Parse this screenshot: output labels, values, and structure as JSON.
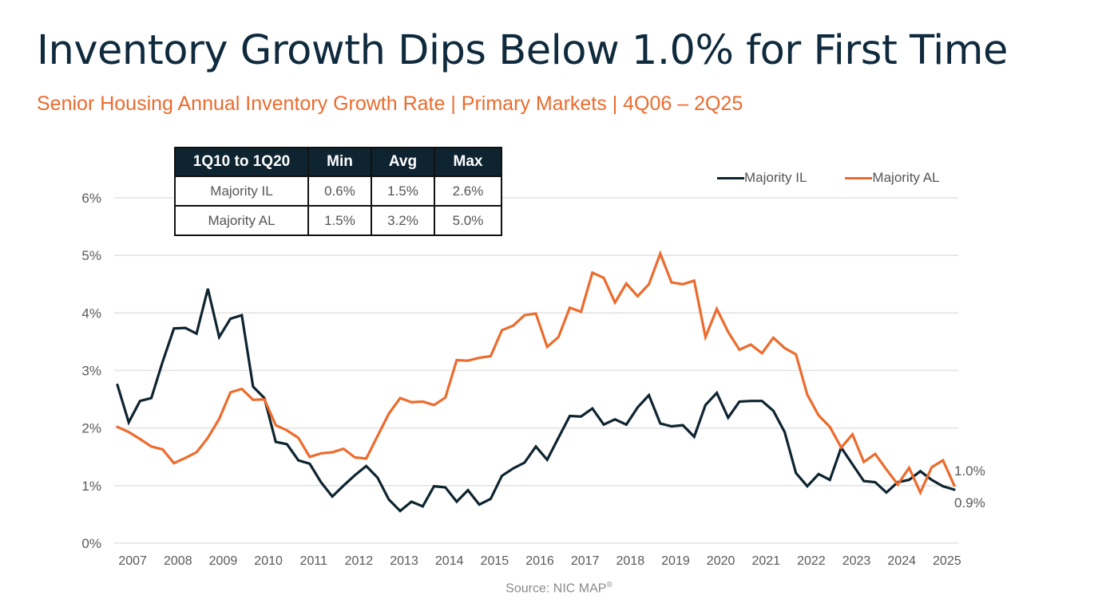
{
  "header": {
    "title": "Inventory Growth Dips Below 1.0% for First Time",
    "subtitle": "Senior Housing Annual Inventory Growth Rate | Primary Markets | 4Q06 – 2Q25"
  },
  "colors": {
    "il": "#0e2430",
    "al": "#ec6b2d",
    "title": "#0f2a3d",
    "subtitle": "#ec6b2d",
    "grid": "#e3e3e3"
  },
  "stats_table": {
    "headers": [
      "1Q10 to 1Q20",
      "Min",
      "Avg",
      "Max"
    ],
    "rows": [
      [
        "Majority IL",
        "0.6%",
        "1.5%",
        "2.6%"
      ],
      [
        "Majority AL",
        "1.5%",
        "3.2%",
        "5.0%"
      ]
    ]
  },
  "source": {
    "text": "Source: NIC MAP",
    "mark": "®"
  },
  "chart_data": {
    "type": "line",
    "title": "Inventory Growth Dips Below 1.0% for First Time",
    "subtitle": "Senior Housing Annual Inventory Growth Rate | Primary Markets | 4Q06 – 2Q25",
    "xlabel": "",
    "ylabel": "",
    "x_start": "4Q06",
    "x_end": "2Q25",
    "x_tick_labels": [
      "2007",
      "2008",
      "2009",
      "2010",
      "2011",
      "2012",
      "2013",
      "2014",
      "2015",
      "2016",
      "2017",
      "2018",
      "2019",
      "2020",
      "2021",
      "2022",
      "2023",
      "2024",
      "2025"
    ],
    "y_tick_labels": [
      "0%",
      "1%",
      "2%",
      "3%",
      "4%",
      "5%",
      "6%"
    ],
    "ylim": [
      0,
      6
    ],
    "grid": true,
    "legend_position": "top-right",
    "series": [
      {
        "name": "Majority IL",
        "color": "#0e2430",
        "end_label": "0.9%",
        "values": [
          2.75,
          2.1,
          2.47,
          2.52,
          3.15,
          3.73,
          3.74,
          3.64,
          4.42,
          3.58,
          3.9,
          3.96,
          2.72,
          2.52,
          1.76,
          1.72,
          1.44,
          1.38,
          1.06,
          0.81,
          1.0,
          1.18,
          1.34,
          1.14,
          0.76,
          0.56,
          0.72,
          0.64,
          0.99,
          0.97,
          0.72,
          0.92,
          0.67,
          0.77,
          1.17,
          1.3,
          1.4,
          1.68,
          1.45,
          1.83,
          2.21,
          2.2,
          2.34,
          2.06,
          2.15,
          2.06,
          2.36,
          2.57,
          2.08,
          2.03,
          2.05,
          1.85,
          2.4,
          2.61,
          2.18,
          2.46,
          2.47,
          2.47,
          2.3,
          1.93,
          1.22,
          0.99,
          1.2,
          1.1,
          1.66,
          1.37,
          1.08,
          1.06,
          0.88,
          1.06,
          1.1,
          1.25,
          1.1,
          0.99,
          0.93
        ]
      },
      {
        "name": "Majority AL",
        "color": "#ec6b2d",
        "end_label": "1.0%",
        "values": [
          2.02,
          1.93,
          1.81,
          1.68,
          1.63,
          1.39,
          1.48,
          1.58,
          1.83,
          2.16,
          2.62,
          2.68,
          2.49,
          2.5,
          2.05,
          1.96,
          1.83,
          1.5,
          1.56,
          1.58,
          1.64,
          1.49,
          1.47,
          1.86,
          2.25,
          2.52,
          2.45,
          2.46,
          2.4,
          2.53,
          3.18,
          3.17,
          3.22,
          3.25,
          3.7,
          3.78,
          3.96,
          3.99,
          3.41,
          3.58,
          4.09,
          4.02,
          4.7,
          4.61,
          4.18,
          4.51,
          4.29,
          4.5,
          5.03,
          4.53,
          4.5,
          4.56,
          3.58,
          4.07,
          3.67,
          3.36,
          3.45,
          3.3,
          3.57,
          3.39,
          3.28,
          2.58,
          2.22,
          2.02,
          1.66,
          1.89,
          1.41,
          1.55,
          1.28,
          1.02,
          1.31,
          0.88,
          1.32,
          1.44,
          1.0
        ]
      }
    ]
  }
}
